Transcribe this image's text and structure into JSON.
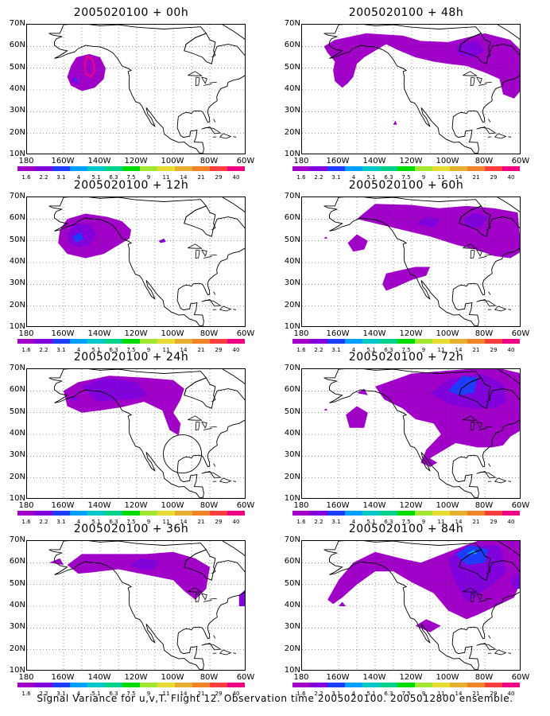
{
  "panels": [
    {
      "id": "p00",
      "title": "2005020100 + 00h"
    },
    {
      "id": "p48",
      "title": "2005020100 + 48h"
    },
    {
      "id": "p12",
      "title": "2005020100 + 12h"
    },
    {
      "id": "p60",
      "title": "2005020100 + 60h"
    },
    {
      "id": "p24",
      "title": "2005020100 + 24h"
    },
    {
      "id": "p72",
      "title": "2005020100 + 72h"
    },
    {
      "id": "p36",
      "title": "2005020100 + 36h"
    },
    {
      "id": "p84",
      "title": "2005020100 + 84h"
    }
  ],
  "lat_labels": [
    "70N",
    "60N",
    "50N",
    "40N",
    "30N",
    "20N",
    "10N"
  ],
  "lon_labels": [
    "180",
    "160W",
    "140W",
    "120W",
    "100W",
    "80W",
    "60W"
  ],
  "colorbar": {
    "labels": [
      "1.6",
      "2.2",
      "3.1",
      "4",
      "5.1",
      "6.3",
      "7.5",
      "9",
      "11",
      "14",
      "21",
      "29",
      "40"
    ],
    "colors": [
      "#a000c8",
      "#8200dc",
      "#1e3cff",
      "#00a0ff",
      "#00c8c8",
      "#00d28c",
      "#00dc00",
      "#a0e632",
      "#e6dc32",
      "#e6af2d",
      "#f08228",
      "#fa3c3c",
      "#f00082"
    ]
  },
  "caption": "Signal Variance for u,v,T. Flight 12. Observation time 2005020100. 2005012800 ensemble."
}
